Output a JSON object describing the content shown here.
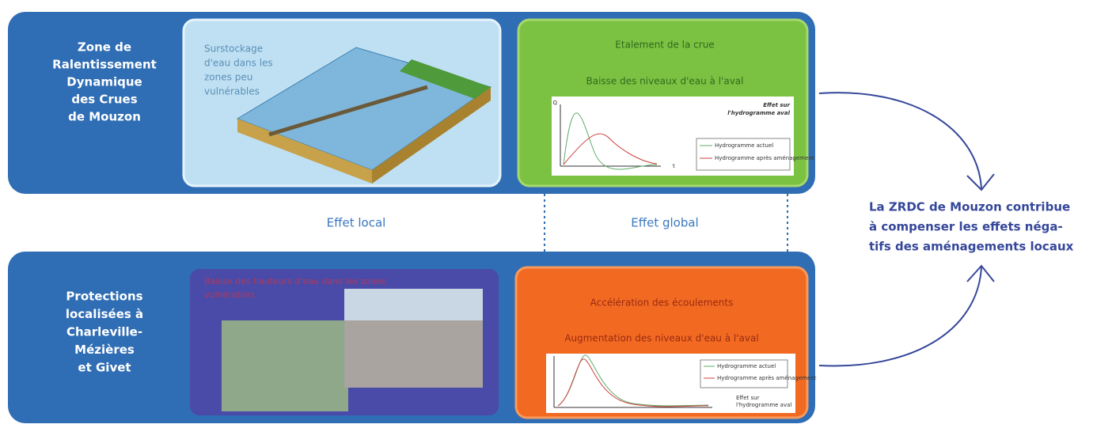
{
  "top_row": {
    "label": [
      "Zone de",
      "Ralentissement",
      "Dynamique",
      "des Crues",
      "de Mouzon"
    ],
    "local_panel": {
      "text": [
        "Surstockage",
        "d'eau dans les",
        "zones peu",
        "vulnérables"
      ]
    },
    "global_panel": {
      "title": "Etalement de la crue",
      "subtitle": "Baisse des niveaux d'eau à l'aval",
      "chart": {
        "note": [
          "Effet sur",
          "l'hydrogramme aval"
        ],
        "y_axis": "Q",
        "x_axis": "t",
        "legend": [
          "Hydrogramme actuel",
          "Hydrogramme après aménagement"
        ]
      }
    }
  },
  "effects": {
    "local": "Effet local",
    "global": "Effet global"
  },
  "bottom_row": {
    "label": [
      "Protections",
      "localisées à",
      "Charleville-",
      "Mézières",
      "et Givet"
    ],
    "local_panel": {
      "text": [
        "Baisse des hauteurs d'eau dans les zones",
        "vulnérables"
      ]
    },
    "global_panel": {
      "title": "Accélération des écoulements",
      "subtitle": "Augmentation des niveaux d'eau à l'aval",
      "chart": {
        "note": [
          "Effet sur",
          "l'hydrogramme aval"
        ],
        "legend": [
          "Hydrogramme actuel",
          "Hydrogramme après aménagement"
        ]
      }
    }
  },
  "conclusion": [
    "La ZRDC de Mouzon contribue",
    "à compenser les effets néga-",
    "tifs des aménagements locaux"
  ]
}
